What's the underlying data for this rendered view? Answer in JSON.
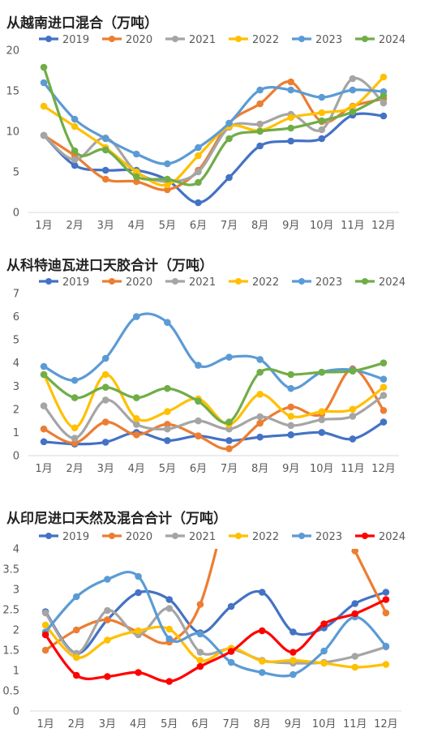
{
  "chart_data": [
    {
      "type": "line",
      "title": "从越南进口混合（万吨）",
      "categories": [
        "1月",
        "2月",
        "3月",
        "4月",
        "5月",
        "6月",
        "7月",
        "8月",
        "9月",
        "10月",
        "11月",
        "12月"
      ],
      "ylim": [
        0,
        20
      ],
      "yticks": [
        "0",
        "5",
        "10",
        "15",
        "20"
      ],
      "grid": false,
      "legend_position": "top",
      "series": [
        {
          "name": "2019",
          "color": "#4472C4",
          "values": [
            9.5,
            5.8,
            5.2,
            5.2,
            4.0,
            1.2,
            4.3,
            8.2,
            8.8,
            9.1,
            12.0,
            11.9
          ]
        },
        {
          "name": "2020",
          "color": "#ED7D31",
          "values": [
            9.5,
            7.0,
            4.1,
            3.8,
            2.8,
            5.2,
            11.0,
            13.4,
            16.1,
            11.2,
            13.1,
            14.0
          ]
        },
        {
          "name": "2021",
          "color": "#A5A5A5",
          "values": [
            9.5,
            6.5,
            9.2,
            5.0,
            3.8,
            5.0,
            10.5,
            10.9,
            12.1,
            10.2,
            16.5,
            13.5
          ]
        },
        {
          "name": "2022",
          "color": "#FFC000",
          "values": [
            13.1,
            10.6,
            8.0,
            5.0,
            3.4,
            7.0,
            10.6,
            10.1,
            11.7,
            12.3,
            13.0,
            16.7
          ]
        },
        {
          "name": "2023",
          "color": "#5B9BD5",
          "values": [
            16.0,
            11.5,
            9.1,
            7.2,
            6.0,
            8.0,
            11.0,
            15.1,
            15.1,
            14.2,
            15.1,
            14.9
          ]
        },
        {
          "name": "2024",
          "color": "#70AD47",
          "values": [
            17.9,
            7.6,
            7.7,
            4.4,
            4.1,
            3.7,
            9.1,
            10.0,
            10.4,
            11.3,
            12.4,
            14.4
          ]
        }
      ]
    },
    {
      "type": "line",
      "title": "从科特迪瓦进口天胶合计（万吨）",
      "categories": [
        "1月",
        "2月",
        "3月",
        "4月",
        "5月",
        "6月",
        "7月",
        "8月",
        "9月",
        "10月",
        "11月",
        "12月"
      ],
      "ylim": [
        0,
        7
      ],
      "yticks": [
        "0",
        "1",
        "2",
        "3",
        "4",
        "5",
        "6",
        "7"
      ],
      "grid": false,
      "legend_position": "top",
      "series": [
        {
          "name": "2019",
          "color": "#4472C4",
          "values": [
            0.6,
            0.5,
            0.58,
            1.0,
            0.65,
            0.85,
            0.65,
            0.8,
            0.9,
            1.0,
            0.72,
            1.45
          ]
        },
        {
          "name": "2020",
          "color": "#ED7D31",
          "values": [
            1.15,
            0.55,
            1.45,
            0.9,
            1.35,
            0.85,
            0.3,
            1.4,
            2.1,
            1.8,
            3.75,
            1.95
          ]
        },
        {
          "name": "2021",
          "color": "#A5A5A5",
          "values": [
            2.15,
            0.75,
            2.4,
            1.35,
            1.15,
            1.5,
            1.15,
            1.68,
            1.3,
            1.55,
            1.7,
            2.6
          ]
        },
        {
          "name": "2022",
          "color": "#FFC000",
          "values": [
            3.5,
            1.2,
            3.5,
            1.6,
            1.9,
            2.45,
            1.35,
            2.65,
            1.7,
            1.9,
            2.0,
            2.95
          ]
        },
        {
          "name": "2023",
          "color": "#5B9BD5",
          "values": [
            3.85,
            3.25,
            4.2,
            6.0,
            5.75,
            3.9,
            4.25,
            4.15,
            2.9,
            3.6,
            3.7,
            3.3
          ]
        },
        {
          "name": "2024",
          "color": "#70AD47",
          "values": [
            3.5,
            2.5,
            2.95,
            2.5,
            2.9,
            2.35,
            1.45,
            3.6,
            3.5,
            3.6,
            3.65,
            4.0
          ]
        }
      ]
    },
    {
      "type": "line",
      "title": "从印尼进口天然及混合合计（万吨）",
      "categories": [
        "1月",
        "2月",
        "3月",
        "4月",
        "5月",
        "6月",
        "7月",
        "8月",
        "9月",
        "10月",
        "11月",
        "12月"
      ],
      "ylim": [
        0,
        4
      ],
      "yticks": [
        "0",
        "0.5",
        "1",
        "1.5",
        "2",
        "2.5",
        "3",
        "3.5",
        "4"
      ],
      "grid": false,
      "legend_position": "top",
      "series": [
        {
          "name": "2019",
          "color": "#4472C4",
          "values": [
            2.45,
            1.42,
            2.25,
            2.92,
            2.75,
            1.93,
            2.58,
            2.93,
            1.95,
            2.05,
            2.65,
            2.93
          ]
        },
        {
          "name": "2020",
          "color": "#ED7D31",
          "values": [
            1.5,
            2.0,
            2.25,
            1.95,
            1.7,
            2.63,
            5.5,
            null,
            null,
            null,
            3.95,
            2.42
          ]
        },
        {
          "name": "2021",
          "color": "#A5A5A5",
          "values": [
            2.42,
            1.42,
            2.48,
            1.88,
            2.53,
            1.45,
            1.53,
            1.25,
            1.18,
            1.2,
            1.35,
            1.58
          ]
        },
        {
          "name": "2022",
          "color": "#FFC000",
          "values": [
            2.12,
            1.32,
            1.75,
            1.98,
            2.02,
            1.25,
            1.55,
            1.23,
            1.25,
            1.18,
            1.08,
            1.15
          ]
        },
        {
          "name": "2023",
          "color": "#5B9BD5",
          "values": [
            1.95,
            2.82,
            3.25,
            3.32,
            1.78,
            1.9,
            1.2,
            0.95,
            0.9,
            1.48,
            2.32,
            1.6
          ]
        },
        {
          "name": "2024",
          "color": "#FF0000",
          "values": [
            1.88,
            0.88,
            0.85,
            0.95,
            0.73,
            1.1,
            1.47,
            1.98,
            1.45,
            2.15,
            2.4,
            2.75
          ]
        }
      ]
    }
  ]
}
